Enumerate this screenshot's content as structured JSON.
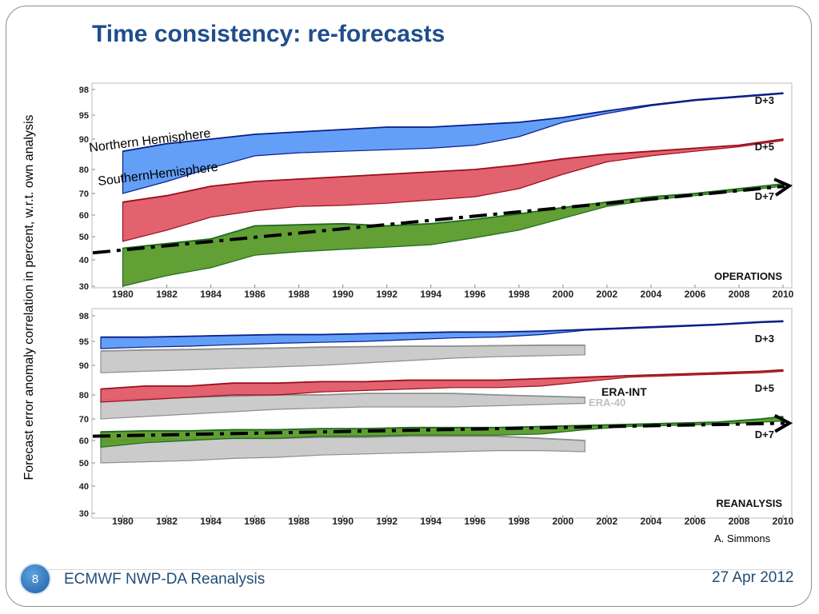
{
  "slide": {
    "title": "Time consistency: re-forecasts",
    "ylabel": "Forecast error anomaly correlation in percent, w.r.t. own analysis",
    "credit": "A. Simmons",
    "page_number": "8",
    "footer_left": "ECMWF NWP-DA Reanalysis",
    "footer_right": "27 Apr 2012"
  },
  "colors": {
    "title": "#1f4e8c",
    "nh_sh_d3_fill": "#5b9af7",
    "nh_sh_d5_fill": "#e05a68",
    "nh_sh_d7_fill": "#5a9a2a",
    "era40_fill": "#c8c8c8",
    "page_badge": "#2e74c0"
  },
  "chart_data": [
    {
      "type": "area",
      "panel_label": "OPERATIONS",
      "x_ticks": [
        "1980",
        "1982",
        "1984",
        "1986",
        "1988",
        "1990",
        "1992",
        "1994",
        "1996",
        "1998",
        "2000",
        "2002",
        "2004",
        "2006",
        "2008",
        "2010"
      ],
      "y_ticks": [
        "30",
        "40",
        "50",
        "60",
        "70",
        "80",
        "90",
        "95",
        "98"
      ],
      "xlim": [
        1978.6,
        2010.4
      ],
      "ylim": [
        30,
        98
      ],
      "y_scale": "nonlinear (compressed toward 98)",
      "annotations": [
        "Northern Hemisphere",
        "SouthernHemisphere"
      ],
      "trend_line": {
        "x": [
          1979,
          2010
        ],
        "y": [
          43,
          73
        ]
      },
      "bands": [
        {
          "label": "D+3",
          "x": [
            1980,
            1982,
            1984,
            1986,
            1988,
            1990,
            1992,
            1994,
            1996,
            1998,
            2000,
            2002,
            2004,
            2006,
            2008,
            2010
          ],
          "upper": [
            86,
            88.5,
            90,
            91,
            91.5,
            92,
            92.5,
            92.5,
            93,
            93.5,
            94.5,
            95.5,
            96.2,
            96.8,
            97.2,
            97.6
          ],
          "lower": [
            70,
            75,
            80.5,
            84.5,
            85.5,
            86,
            86.5,
            87,
            88,
            90.5,
            93.5,
            95.2,
            96.1,
            96.7,
            97.1,
            97.5
          ]
        },
        {
          "label": "D+5",
          "x": [
            1980,
            1982,
            1984,
            1986,
            1988,
            1990,
            1992,
            1994,
            1996,
            1998,
            2000,
            2002,
            2004,
            2006,
            2008,
            2010
          ],
          "upper": [
            66,
            69,
            73,
            75,
            76,
            77,
            78,
            79,
            80,
            81.5,
            83.5,
            85,
            86,
            87,
            88,
            90
          ],
          "lower": [
            48,
            53,
            59,
            62,
            64,
            64.5,
            65.5,
            67,
            68.5,
            72,
            78,
            82.5,
            84.5,
            86,
            87.5,
            89.5
          ]
        },
        {
          "label": "D+7",
          "x": [
            1980,
            1982,
            1984,
            1986,
            1988,
            1990,
            1992,
            1994,
            1996,
            1998,
            2000,
            2002,
            2004,
            2006,
            2008,
            2010
          ],
          "upper": [
            45,
            47,
            49,
            55,
            55.5,
            56,
            55,
            56,
            58,
            60.5,
            63.5,
            66,
            68.5,
            70,
            72,
            74
          ],
          "lower": [
            30,
            34,
            37,
            42,
            43.5,
            44.5,
            45.5,
            46.5,
            49.5,
            53,
            58.5,
            64,
            67,
            69,
            71,
            73
          ]
        }
      ]
    },
    {
      "type": "area",
      "panel_label": "REANALYSIS",
      "x_ticks": [
        "1980",
        "1982",
        "1984",
        "1986",
        "1988",
        "1990",
        "1992",
        "1994",
        "1996",
        "1998",
        "2000",
        "2002",
        "2004",
        "2006",
        "2008",
        "2010"
      ],
      "y_ticks": [
        "30",
        "40",
        "50",
        "60",
        "70",
        "80",
        "90",
        "95",
        "98"
      ],
      "xlim": [
        1978.6,
        2010.4
      ],
      "ylim": [
        30,
        98
      ],
      "trend_line": {
        "x": [
          1979,
          2010
        ],
        "y": [
          62,
          68
        ]
      },
      "legend": [
        "ERA-INT",
        "ERA-40"
      ],
      "bands": [
        {
          "label": "D+3",
          "x": [
            1979,
            1981,
            1983,
            1985,
            1987,
            1989,
            1991,
            1993,
            1995,
            1997,
            1999,
            2001,
            2003,
            2005,
            2007,
            2009,
            2010
          ],
          "upper": [
            95.5,
            95.5,
            95.6,
            95.7,
            95.8,
            95.8,
            95.9,
            96,
            96.1,
            96.1,
            96.2,
            96.4,
            96.6,
            96.8,
            97,
            97.3,
            97.4
          ],
          "lower": [
            93.5,
            93.8,
            94.0,
            94.3,
            94.6,
            94.8,
            95,
            95.2,
            95.4,
            95.5,
            95.8,
            96.3,
            96.5,
            96.7,
            96.9,
            97.2,
            97.3
          ]
        },
        {
          "label": "D+5",
          "x": [
            1979,
            1981,
            1983,
            1985,
            1987,
            1989,
            1991,
            1993,
            1995,
            1997,
            1999,
            2001,
            2003,
            2005,
            2007,
            2009,
            2010
          ],
          "upper": [
            82,
            83,
            83,
            84,
            84,
            84.5,
            84.5,
            85,
            85,
            85,
            85.5,
            86,
            86.5,
            87,
            87.5,
            88,
            88.5
          ],
          "lower": [
            77,
            78,
            79,
            80,
            80,
            81,
            81.5,
            82,
            82.5,
            82.5,
            83,
            84.5,
            86,
            86.5,
            87,
            87.5,
            88
          ]
        },
        {
          "label": "D+7",
          "x": [
            1979,
            1981,
            1983,
            1985,
            1987,
            1989,
            1991,
            1993,
            1995,
            1997,
            1999,
            2001,
            2003,
            2005,
            2007,
            2009,
            2010
          ],
          "upper": [
            64,
            64.5,
            64.5,
            65,
            65,
            65.5,
            65.5,
            66,
            66,
            66,
            66.5,
            67,
            67.5,
            68,
            68.5,
            70,
            71
          ],
          "lower": [
            57,
            59,
            60,
            61,
            61,
            62,
            62,
            62.5,
            62.5,
            62.5,
            63,
            65,
            66.5,
            67,
            67.5,
            68.5,
            69
          ]
        },
        {
          "label": "ERA-40 D+3",
          "x": [
            1979,
            1981,
            1983,
            1985,
            1987,
            1989,
            1991,
            1993,
            1995,
            1997,
            1999,
            2001
          ],
          "upper": [
            93,
            93.2,
            93.3,
            93.5,
            93.6,
            93.8,
            93.9,
            94,
            94,
            94.1,
            94.2,
            94.2
          ],
          "lower": [
            87.5,
            88,
            88.5,
            89,
            89.5,
            90,
            90.5,
            91,
            91.5,
            91.8,
            92,
            92.2
          ]
        },
        {
          "label": "ERA-40 D+5",
          "x": [
            1979,
            1981,
            1983,
            1985,
            1987,
            1989,
            1991,
            1993,
            1995,
            1997,
            1999,
            2001
          ],
          "upper": [
            78,
            78.5,
            79,
            79.5,
            80,
            80,
            80.5,
            80.5,
            80.5,
            80,
            79.5,
            79
          ],
          "lower": [
            70,
            71,
            72,
            73,
            74,
            74.5,
            75,
            75,
            75,
            75.5,
            76,
            76.5
          ]
        },
        {
          "label": "ERA-40 D+7",
          "x": [
            1979,
            1981,
            1983,
            1985,
            1987,
            1989,
            1991,
            1993,
            1995,
            1997,
            1999,
            2001
          ],
          "upper": [
            60,
            60.5,
            60.5,
            61,
            61,
            61.5,
            61.5,
            62,
            62,
            62,
            61,
            60
          ],
          "lower": [
            50,
            50.5,
            51,
            52,
            52.5,
            53.5,
            54,
            54.5,
            55,
            55.5,
            55.5,
            55
          ]
        }
      ]
    }
  ]
}
